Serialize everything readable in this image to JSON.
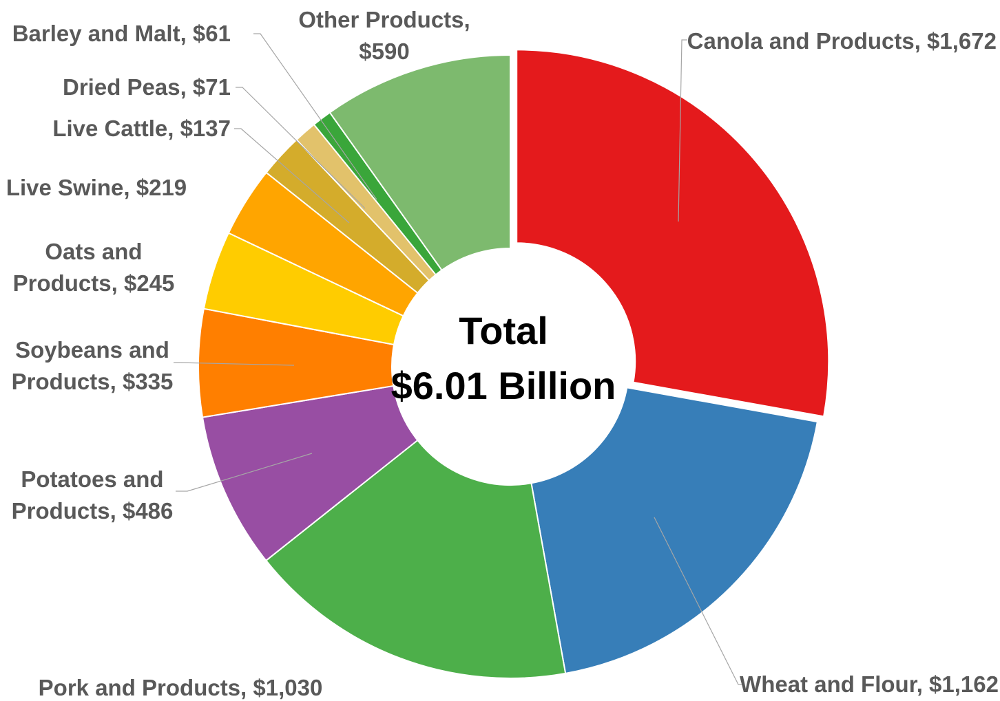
{
  "chart_data": {
    "type": "pie",
    "subtype": "donut",
    "center_title": "Total",
    "center_value": "$6.01 Billion",
    "slices": [
      {
        "label": "Canola and Products",
        "value": 1672,
        "value_text": "$1,672",
        "color": "#e41a1c"
      },
      {
        "label": "Wheat and Flour",
        "value": 1162,
        "value_text": "$1,162",
        "color": "#377eb8"
      },
      {
        "label": "Pork and Products",
        "value": 1030,
        "value_text": "$1,030",
        "color": "#4daf4a"
      },
      {
        "label": "Potatoes and Products",
        "value": 486,
        "value_text": "$486",
        "color": "#984ea3"
      },
      {
        "label": "Soybeans and Products",
        "value": 335,
        "value_text": "$335",
        "color": "#ff7f00"
      },
      {
        "label": "Oats and Products",
        "value": 245,
        "value_text": "$245",
        "color": "#ffcc00"
      },
      {
        "label": "Live Swine",
        "value": 219,
        "value_text": "$219",
        "color": "#ffa500"
      },
      {
        "label": "Live Cattle",
        "value": 137,
        "value_text": "$137",
        "color": "#d4ac2b"
      },
      {
        "label": "Dried Peas",
        "value": 71,
        "value_text": "$71",
        "color": "#e2c26b"
      },
      {
        "label": "Barley and Malt",
        "value": 61,
        "value_text": "$61",
        "color": "#3aa63a"
      },
      {
        "label": "Other Products",
        "value": 590,
        "value_text": "$590",
        "color": "#7dba6e"
      }
    ],
    "label_lines": [
      [
        "Canola and Products, $1,672"
      ],
      [
        "Wheat and Flour, $1,162"
      ],
      [
        "Pork and Products, $1,030"
      ],
      [
        "Potatoes and",
        "Products, $486"
      ],
      [
        "Soybeans and",
        "Products, $335"
      ],
      [
        "Oats and",
        "Products, $245"
      ],
      [
        "Live Swine, $219"
      ],
      [
        "Live Cattle, $137"
      ],
      [
        "Dried Peas, $71"
      ],
      [
        "Barley and Malt, $61"
      ],
      [
        "Other Products,",
        "$590"
      ]
    ]
  }
}
